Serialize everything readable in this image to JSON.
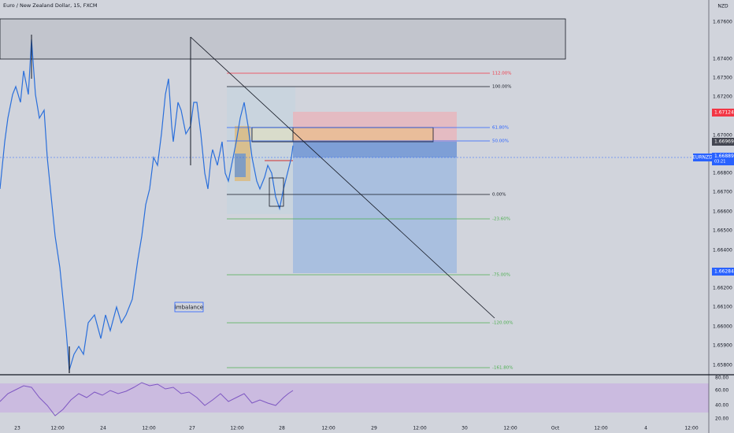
{
  "header": {
    "title": "Euro / New Zealand Dollar, 15, FXCM",
    "currency": "NZD"
  },
  "price_axis": [
    "1.67600",
    "1.67400",
    "1.67300",
    "1.67200",
    "1.67000",
    "1.66800",
    "1.66700",
    "1.66600",
    "1.66500",
    "1.66400",
    "1.66200",
    "1.66100",
    "1.66000",
    "1.65900",
    "1.65800"
  ],
  "badges": [
    {
      "label": "1.67124"
    },
    {
      "label": "1.66969"
    },
    {
      "label": "EURNZD",
      "price": "1.66889",
      "countdown": "03:21"
    },
    {
      "label": "1.66284"
    }
  ],
  "fib_levels": [
    "112.00%",
    "100.00%",
    "61.80%",
    "50.00%",
    "0.00%",
    "-23.60%",
    "-75.00%",
    "-120.00%",
    "-161.80%"
  ],
  "annotation": "imbalance",
  "rsi_axis": [
    "80.00",
    "60.00",
    "40.00",
    "20.00"
  ],
  "time_axis": [
    "23",
    "12:00",
    "24",
    "12:00",
    "27",
    "12:00",
    "28",
    "12:00",
    "29",
    "12:00",
    "30",
    "12:00",
    "Oct",
    "12:00",
    "4",
    "12:00"
  ]
}
